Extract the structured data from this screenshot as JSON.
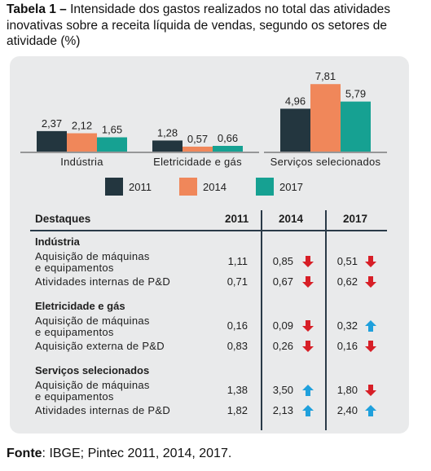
{
  "title": {
    "bold": "Tabela 1 –",
    "text": " Intensidade dos gastos realizados no total das atividades inovativas sobre a receita líquida de vendas, segundo os setores de atividade (%)"
  },
  "colors": {
    "y2011": "#23363f",
    "y2014": "#f0875a",
    "y2017": "#16a192",
    "down": "#d71f27",
    "up": "#1fa0dc"
  },
  "chart_data": {
    "type": "bar",
    "categories": [
      "Indústria",
      "Eletricidade e gás",
      "Serviços selecionados"
    ],
    "series": [
      {
        "name": "2011",
        "values": [
          2.37,
          1.28,
          4.96
        ],
        "labels": [
          "2,37",
          "1,28",
          "4,96"
        ]
      },
      {
        "name": "2014",
        "values": [
          2.12,
          0.57,
          7.81
        ],
        "labels": [
          "2,12",
          "0,57",
          "7,81"
        ]
      },
      {
        "name": "2017",
        "values": [
          1.65,
          0.66,
          5.79
        ],
        "labels": [
          "1,65",
          "0,66",
          "5,79"
        ]
      }
    ],
    "ylim": [
      0,
      7.81
    ],
    "legend": "bottom"
  },
  "table": {
    "headers": [
      "Destaques",
      "2011",
      "2014",
      "2017"
    ],
    "groups": [
      {
        "name": "Indústria",
        "rows": [
          {
            "label1": "Aquisição de máquinas",
            "label2": "e equipamentos",
            "v2011": "1,11",
            "v2014": "0,85",
            "a2014": "down",
            "v2017": "0,51",
            "a2017": "down"
          },
          {
            "label1": "Atividades internas de P&D",
            "label2": "",
            "v2011": "0,71",
            "v2014": "0,67",
            "a2014": "down",
            "v2017": "0,62",
            "a2017": "down"
          }
        ]
      },
      {
        "name": "Eletricidade e gás",
        "rows": [
          {
            "label1": "Aquisição de máquinas",
            "label2": "e equipamentos",
            "v2011": "0,16",
            "v2014": "0,09",
            "a2014": "down",
            "v2017": "0,32",
            "a2017": "up"
          },
          {
            "label1": "Aquisição externa de P&D",
            "label2": "",
            "v2011": "0,83",
            "v2014": "0,26",
            "a2014": "down",
            "v2017": "0,16",
            "a2017": "down"
          }
        ]
      },
      {
        "name": "Serviços selecionados",
        "rows": [
          {
            "label1": "Aquisição de máquinas",
            "label2": "e equipamentos",
            "v2011": "1,38",
            "v2014": "3,50",
            "a2014": "up",
            "v2017": "1,80",
            "a2017": "down"
          },
          {
            "label1": "Atividades internas de P&D",
            "label2": "",
            "v2011": "1,82",
            "v2014": "2,13",
            "a2014": "up",
            "v2017": "2,40",
            "a2017": "up"
          }
        ]
      }
    ]
  },
  "source": {
    "bold": "Fonte",
    "text": ": IBGE; Pintec 2011, 2014, 2017."
  }
}
